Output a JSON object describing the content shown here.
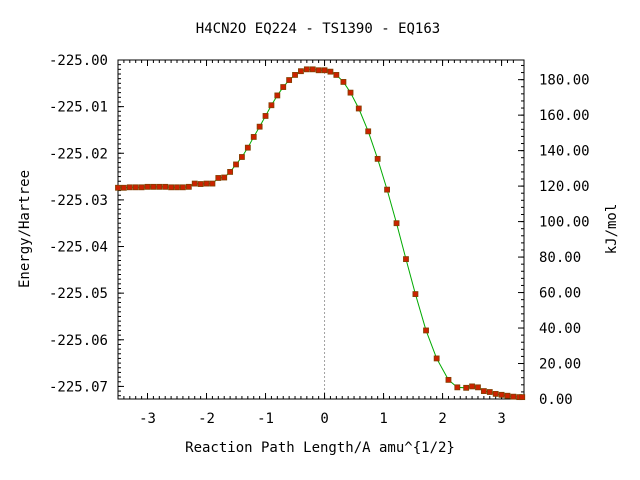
{
  "chart_data": {
    "type": "line",
    "title": "H4CN2O    EQ224 - TS1390 - EQ163",
    "xlabel": "Reaction Path Length/A amu^{1/2}",
    "ylabel": "Energy/Hartree",
    "y2label": "kJ/mol",
    "xlim": [
      -3.5,
      3.38
    ],
    "ylim": [
      -225.0727,
      -225.0
    ],
    "y2lim": [
      0,
      191.08
    ],
    "x_ticks": [
      -3,
      -2,
      -1,
      0,
      1,
      2,
      3
    ],
    "x_tick_labels": [
      "-3",
      "-2",
      "-1",
      "0",
      "1",
      "2",
      "3"
    ],
    "y_ticks": [
      -225.0,
      -225.01,
      -225.02,
      -225.03,
      -225.04,
      -225.05,
      -225.06,
      -225.07
    ],
    "y_tick_labels": [
      "-225.00",
      "-225.01",
      "-225.02",
      "-225.03",
      "-225.04",
      "-225.05",
      "-225.06",
      "-225.07"
    ],
    "y2_ticks": [
      0,
      20,
      40,
      60,
      80,
      100,
      120,
      140,
      160,
      180
    ],
    "y2_tick_labels": [
      "0.00",
      "20.00",
      "40.00",
      "60.00",
      "80.00",
      "100.00",
      "120.00",
      "140.00",
      "160.00",
      "180.00"
    ],
    "ts_x": 0.0,
    "line_color": "#00aa00",
    "marker_color": "#cc2200",
    "marker_edge": "#804000",
    "grid": false,
    "series": [
      {
        "x": [
          -3.5,
          -3.4,
          -3.3,
          -3.2,
          -3.1,
          -3.0,
          -2.9,
          -2.8,
          -2.7,
          -2.6,
          -2.5,
          -2.4,
          -2.3,
          -2.2,
          -2.1,
          -2.0,
          -1.9,
          -1.8,
          -1.7,
          -1.6,
          -1.5,
          -1.4,
          -1.3,
          -1.2,
          -1.1,
          -1.0,
          -0.9,
          -0.8,
          -0.7,
          -0.6,
          -0.5,
          -0.4,
          -0.3,
          -0.2,
          -0.1,
          0.0,
          0.1,
          0.2,
          0.32,
          0.44,
          0.58,
          0.74,
          0.9,
          1.06,
          1.22,
          1.38,
          1.54,
          1.72,
          1.9,
          2.1,
          2.25,
          2.4,
          2.5,
          2.6,
          2.7,
          2.8,
          2.9,
          3.0,
          3.1,
          3.2,
          3.3,
          3.35
        ],
        "y": [
          -225.0274,
          -225.0274,
          -225.0273,
          -225.0273,
          -225.0273,
          -225.0272,
          -225.0272,
          -225.0272,
          -225.0272,
          -225.0273,
          -225.0273,
          -225.0273,
          -225.0272,
          -225.0265,
          -225.0266,
          -225.0265,
          -225.0265,
          -225.0253,
          -225.0252,
          -225.024,
          -225.0224,
          -225.0208,
          -225.0188,
          -225.0165,
          -225.0143,
          -225.012,
          -225.0097,
          -225.0076,
          -225.0058,
          -225.0043,
          -225.0032,
          -225.0024,
          -225.002,
          -225.002,
          -225.0022,
          -225.0022,
          -225.0025,
          -225.0032,
          -225.0047,
          -225.007,
          -225.0104,
          -225.0153,
          -225.0212,
          -225.0278,
          -225.035,
          -225.0427,
          -225.0502,
          -225.058,
          -225.064,
          -225.0686,
          -225.0702,
          -225.0703,
          -225.07,
          -225.0702,
          -225.071,
          -225.0712,
          -225.0716,
          -225.0718,
          -225.072,
          -225.0722,
          -225.0723,
          -225.0723
        ]
      }
    ]
  }
}
